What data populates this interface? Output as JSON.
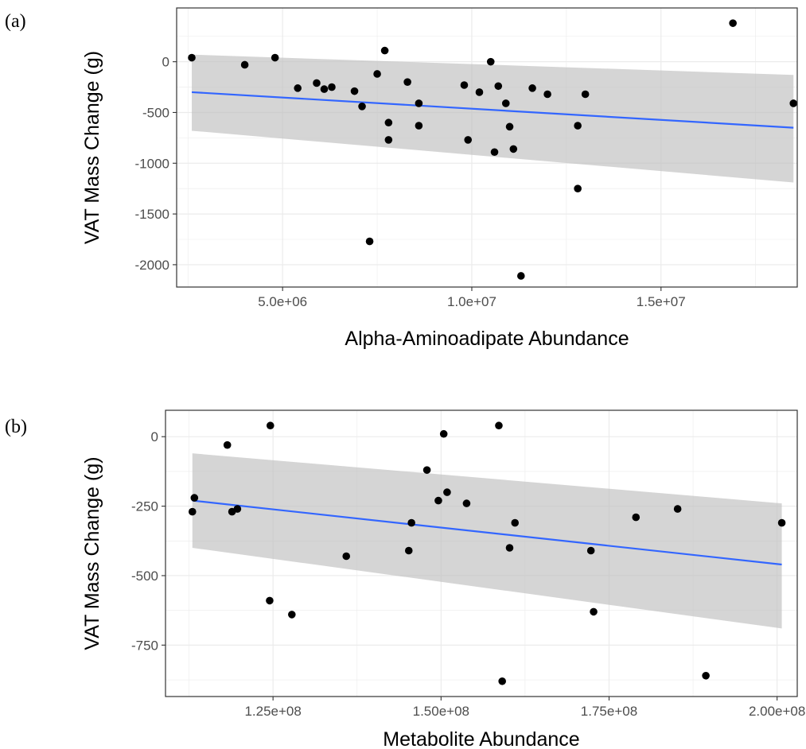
{
  "colors": {
    "points": "#000000",
    "fit_line": "#3366FF",
    "confidence_band": "#BEBEBE",
    "panel_background": "#FFFFFF",
    "grid_major": "#EBEBEB",
    "panel_border": "#333333",
    "tick_label": "#4D4D4D"
  },
  "chart_data": [
    {
      "panel_label": "(a)",
      "type": "scatter",
      "xlabel": "Alpha-Aminoadipate Abundance",
      "ylabel": "VAT Mass Change (g)",
      "xlim": [
        2200000,
        18600000
      ],
      "ylim": [
        -2220,
        530
      ],
      "x_ticks": [
        5000000,
        10000000,
        15000000
      ],
      "x_tick_labels": [
        "5.0e+06",
        "1.0e+07",
        "1.5e+07"
      ],
      "y_ticks": [
        0,
        -500,
        -1000,
        -1500,
        -2000
      ],
      "y_tick_labels": [
        "0",
        "-500",
        "-1000",
        "-1500",
        "-2000"
      ],
      "grid": true,
      "points": [
        {
          "x": 2600000,
          "y": 40
        },
        {
          "x": 4000000,
          "y": -30
        },
        {
          "x": 4800000,
          "y": 40
        },
        {
          "x": 5400000,
          "y": -260
        },
        {
          "x": 5900000,
          "y": -210
        },
        {
          "x": 6100000,
          "y": -270
        },
        {
          "x": 6300000,
          "y": -250
        },
        {
          "x": 6900000,
          "y": -290
        },
        {
          "x": 7100000,
          "y": -440
        },
        {
          "x": 7300000,
          "y": -1770
        },
        {
          "x": 7500000,
          "y": -120
        },
        {
          "x": 7700000,
          "y": 110
        },
        {
          "x": 7800000,
          "y": -600
        },
        {
          "x": 7800000,
          "y": -770
        },
        {
          "x": 8300000,
          "y": -200
        },
        {
          "x": 8600000,
          "y": -410
        },
        {
          "x": 8600000,
          "y": -630
        },
        {
          "x": 9800000,
          "y": -230
        },
        {
          "x": 9900000,
          "y": -770
        },
        {
          "x": 10200000,
          "y": -300
        },
        {
          "x": 10500000,
          "y": 0
        },
        {
          "x": 10600000,
          "y": -890
        },
        {
          "x": 10700000,
          "y": -240
        },
        {
          "x": 10900000,
          "y": -410
        },
        {
          "x": 11000000,
          "y": -640
        },
        {
          "x": 11100000,
          "y": -860
        },
        {
          "x": 11300000,
          "y": -2110
        },
        {
          "x": 11600000,
          "y": -260
        },
        {
          "x": 12000000,
          "y": -320
        },
        {
          "x": 12800000,
          "y": -1250
        },
        {
          "x": 12800000,
          "y": -630
        },
        {
          "x": 13000000,
          "y": -320
        },
        {
          "x": 16900000,
          "y": 380
        },
        {
          "x": 18500000,
          "y": -410
        }
      ],
      "fit": {
        "x": [
          2600000,
          18500000
        ],
        "y": [
          -300,
          -650
        ],
        "lower": [
          -680,
          -1190
        ],
        "upper": [
          70,
          -130
        ]
      }
    },
    {
      "panel_label": "(b)",
      "type": "scatter",
      "xlabel": "Metabolite Abundance",
      "ylabel": "VAT Mass Change (g)",
      "xlim": [
        109000000,
        203000000
      ],
      "ylim": [
        -935,
        95
      ],
      "x_ticks": [
        125000000,
        150000000,
        175000000,
        200000000
      ],
      "x_tick_labels": [
        "1.25e+08",
        "1.50e+08",
        "1.75e+08",
        "2.00e+08"
      ],
      "y_ticks": [
        0,
        -250,
        -500,
        -750
      ],
      "y_tick_labels": [
        "0",
        "-250",
        "-500",
        "-750"
      ],
      "grid": true,
      "points": [
        {
          "x": 113000000,
          "y": -270
        },
        {
          "x": 113300000,
          "y": -220
        },
        {
          "x": 118200000,
          "y": -30
        },
        {
          "x": 118900000,
          "y": -270
        },
        {
          "x": 119700000,
          "y": -260
        },
        {
          "x": 124500000,
          "y": -590
        },
        {
          "x": 124600000,
          "y": 40
        },
        {
          "x": 127800000,
          "y": -640
        },
        {
          "x": 135900000,
          "y": -430
        },
        {
          "x": 145200000,
          "y": -410
        },
        {
          "x": 145600000,
          "y": -310
        },
        {
          "x": 147900000,
          "y": -120
        },
        {
          "x": 149600000,
          "y": -230
        },
        {
          "x": 150400000,
          "y": 10
        },
        {
          "x": 150900000,
          "y": -200
        },
        {
          "x": 153800000,
          "y": -240
        },
        {
          "x": 158600000,
          "y": 40
        },
        {
          "x": 159100000,
          "y": -880
        },
        {
          "x": 160200000,
          "y": -400
        },
        {
          "x": 161000000,
          "y": -310
        },
        {
          "x": 172300000,
          "y": -410
        },
        {
          "x": 172700000,
          "y": -630
        },
        {
          "x": 179000000,
          "y": -290
        },
        {
          "x": 185200000,
          "y": -260
        },
        {
          "x": 189400000,
          "y": -860
        },
        {
          "x": 200700000,
          "y": -310
        }
      ],
      "fit": {
        "x": [
          113000000,
          200700000
        ],
        "y": [
          -230,
          -460
        ],
        "lower": [
          -400,
          -690
        ],
        "upper": [
          -60,
          -240
        ]
      }
    }
  ]
}
